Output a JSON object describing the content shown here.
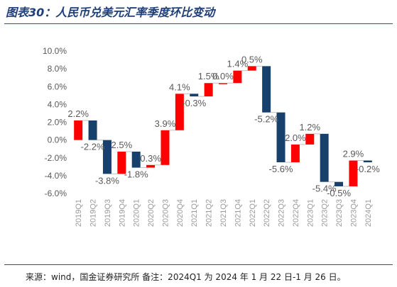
{
  "title": "图表30：人民币兑美元汇率季度环比变动",
  "source_note": "来源：wind，国金证券研究所 备注：2024Q1 为 2024 年 1 月 22 日-1 月 26 日。",
  "colors": {
    "increase": "#ff0000",
    "decrease": "#17406d",
    "title": "#1f3f7a",
    "rule": "#2d4e86"
  },
  "chart_data": {
    "type": "bar",
    "subtype": "waterfall",
    "categories": [
      "2019Q1",
      "2019Q2",
      "2019Q3",
      "2019Q4",
      "2020Q1",
      "2020Q2",
      "2020Q3",
      "2020Q4",
      "2021Q1",
      "2021Q2",
      "2021Q3",
      "2021Q4",
      "2022Q1",
      "2022Q2",
      "2022Q3",
      "2022Q4",
      "2023Q1",
      "2023Q2",
      "2023Q3",
      "2023Q4",
      "2024Q1"
    ],
    "values": [
      2.2,
      -2.2,
      -3.8,
      2.5,
      -1.8,
      0.3,
      3.9,
      4.1,
      -0.3,
      1.5,
      0.0,
      1.4,
      0.5,
      -5.2,
      -5.6,
      2.0,
      1.2,
      -5.4,
      -0.5,
      2.9,
      -0.2
    ],
    "labels": [
      "2.2%",
      "-2.2%",
      "-3.8%",
      "2.5%",
      "-1.8%",
      "0.3%",
      "3.9%",
      "4.1%",
      "-0.3%",
      "1.5%",
      "0.0%",
      "1.4%",
      "0.5%",
      "-5.2%",
      "-5.6%",
      "2.0%",
      "1.2%",
      "-5.4%",
      "-0.5%",
      "2.9%",
      "-0.2%"
    ],
    "ylim": [
      -6.0,
      10.0
    ],
    "yticks": [
      "-6.0%",
      "-4.0%",
      "-2.0%",
      "0.0%",
      "2.0%",
      "4.0%",
      "6.0%",
      "8.0%",
      "10.0%"
    ],
    "ytick_values": [
      -6,
      -4,
      -2,
      0,
      2,
      4,
      6,
      8,
      10
    ],
    "grid": false,
    "legend": "none"
  }
}
